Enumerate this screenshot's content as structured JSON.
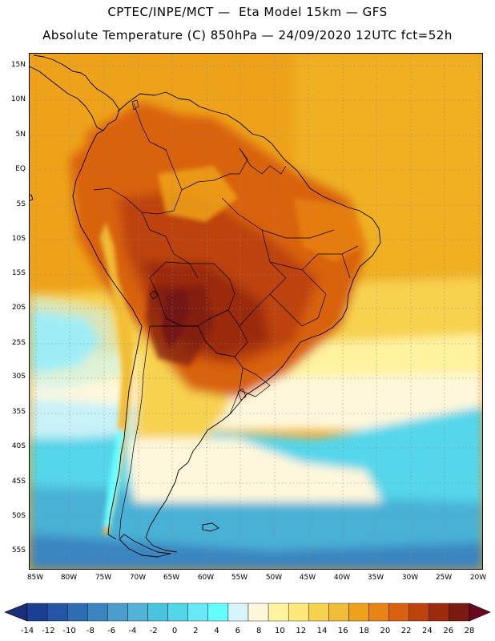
{
  "header": {
    "title_line_1": "CPTEC/INPE/MCT —  Eta Model 15km — GFS",
    "title_line_2": "Absolute Temperature (C) 850hPa — 24/09/2020 12UTC fct=52h"
  },
  "map": {
    "lat_labels": [
      "15N",
      "10N",
      "5N",
      "EQ",
      "5S",
      "10S",
      "15S",
      "20S",
      "25S",
      "30S",
      "35S",
      "40S",
      "45S",
      "50S",
      "55S"
    ],
    "lon_labels": [
      "85W",
      "80W",
      "75W",
      "70W",
      "65W",
      "60W",
      "55W",
      "50W",
      "45W",
      "40W",
      "35W",
      "30W",
      "25W",
      "20W"
    ],
    "palette": {
      "ocean_cold": "#4ad6ec",
      "ocean_cyan": "#5fe6f2",
      "ocean_pale": "#c8f2f8",
      "ocean_cream": "#fff3cf",
      "warm_yellow": "#f7c93e",
      "warm_orange": "#eea21a",
      "hot_orange": "#d96a12",
      "hot_brown": "#b4430f",
      "very_hot": "#8a1c0c",
      "extreme": "#6a0822",
      "deep_blue": "#2a63a8"
    }
  },
  "colorbar": {
    "labels": [
      "-14",
      "-12",
      "-10",
      "-8",
      "-6",
      "-4",
      "-2",
      "0",
      "2",
      "4",
      "6",
      "8",
      "10",
      "12",
      "14",
      "16",
      "18",
      "20",
      "22",
      "24",
      "26",
      "28"
    ],
    "colors": [
      "#1a3f93",
      "#2456a5",
      "#2e6db3",
      "#3a85c0",
      "#4a9dcc",
      "#53b3d6",
      "#4ac4de",
      "#54d6ea",
      "#67eaf6",
      "#66ffff",
      "#d8f4fb",
      "#fff7dc",
      "#fff3a0",
      "#ffe87a",
      "#f7d24f",
      "#f1bd36",
      "#eea21a",
      "#e98314",
      "#d96210",
      "#bd430d",
      "#9b2b0c",
      "#7a1a10"
    ],
    "under_color": "#1a2f7a",
    "over_color": "#6a0822"
  }
}
